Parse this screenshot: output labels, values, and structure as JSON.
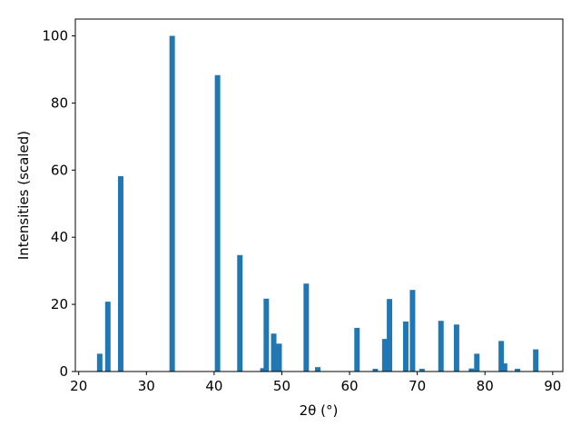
{
  "chart_data": {
    "type": "bar",
    "xlabel": "2θ (°)",
    "ylabel": "Intensities (scaled)",
    "x": [
      23.1,
      24.3,
      26.2,
      33.8,
      40.5,
      43.8,
      47.2,
      47.7,
      48.8,
      49.6,
      53.6,
      55.3,
      61.1,
      63.8,
      65.2,
      65.9,
      68.3,
      69.3,
      70.7,
      73.5,
      75.8,
      78.0,
      78.8,
      82.4,
      82.9,
      84.8,
      87.5
    ],
    "values": [
      5.3,
      20.8,
      58.2,
      100,
      88.3,
      34.7,
      1.0,
      21.7,
      11.3,
      8.3,
      26.2,
      1.3,
      13.0,
      0.8,
      9.7,
      21.6,
      14.9,
      24.3,
      0.8,
      15.1,
      14.0,
      0.9,
      5.3,
      9.1,
      2.4,
      0.8,
      6.6
    ],
    "color": "#1f77b4",
    "xlim": [
      19.5,
      91.5
    ],
    "xticks": [
      20,
      30,
      40,
      50,
      60,
      70,
      80,
      90
    ],
    "ylim": [
      0,
      105
    ],
    "yticks": [
      0,
      20,
      40,
      60,
      80,
      100
    ]
  }
}
